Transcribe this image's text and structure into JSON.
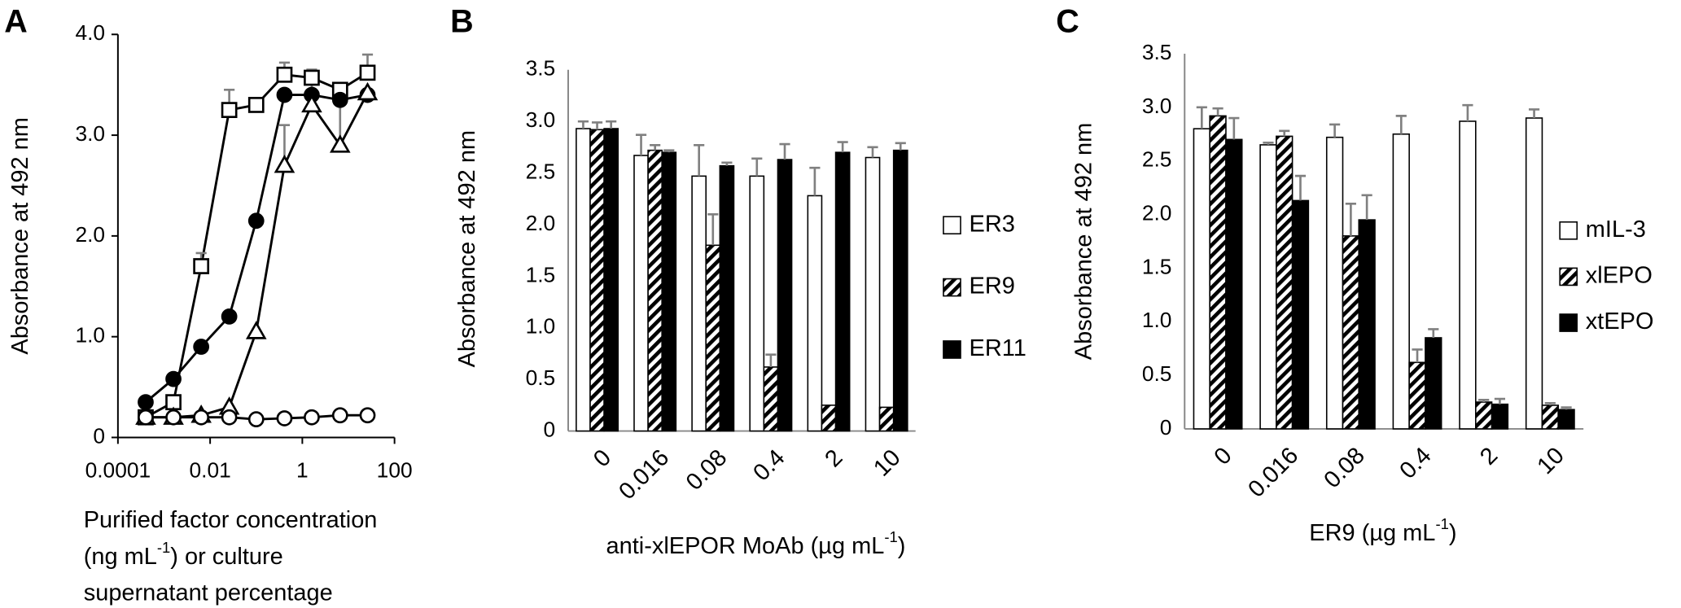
{
  "chart_data": [
    {
      "type": "line",
      "label": "A",
      "y_label": "Absorbance at 492 nm",
      "x_label": [
        [
          "Purified factor concentration"
        ],
        [
          "(ng mL",
          "-1",
          ")  or culture"
        ],
        [
          "supernatant percentage"
        ]
      ],
      "xscale": "log",
      "xlim": [
        0.0001,
        100
      ],
      "xticks": [
        0.0001,
        0.01,
        1,
        100
      ],
      "ylim": [
        0,
        4
      ],
      "yticks": [
        0,
        {
          "value": 1,
          "label": "1.0"
        },
        {
          "value": 2,
          "label": "2.0"
        },
        {
          "value": 3,
          "label": "3.0"
        },
        {
          "value": 4,
          "label": "4.0"
        }
      ],
      "x": [
        0.0004,
        0.0016,
        0.0064,
        0.026,
        0.1,
        0.41,
        1.6,
        6.6,
        26
      ],
      "series": [
        {
          "marker": "square",
          "filled": false,
          "color": "#000000",
          "values": [
            0.2,
            0.35,
            1.7,
            3.25,
            3.3,
            3.6,
            3.57,
            3.45,
            3.62
          ],
          "errors": [
            0,
            0,
            0.13,
            0.2,
            0,
            0.12,
            0,
            0,
            0.18
          ]
        },
        {
          "marker": "circle",
          "filled": true,
          "color": "#000000",
          "values": [
            0.35,
            0.58,
            0.9,
            1.2,
            2.15,
            3.4,
            3.4,
            3.35,
            3.4
          ],
          "errors": [
            0,
            0,
            0,
            0,
            0,
            0,
            0,
            0,
            0
          ]
        },
        {
          "marker": "triangle",
          "filled": false,
          "color": "#000000",
          "values": [
            0.2,
            0.2,
            0.22,
            0.3,
            1.05,
            2.7,
            3.3,
            2.9,
            3.42
          ],
          "errors": [
            0,
            0,
            0,
            0,
            0,
            0.4,
            0.35,
            0.6,
            0
          ]
        },
        {
          "marker": "circle",
          "filled": false,
          "color": "#000000",
          "values": [
            0.2,
            0.2,
            0.2,
            0.2,
            0.18,
            0.19,
            0.2,
            0.22,
            0.22
          ],
          "errors": [
            0,
            0,
            0,
            0,
            0,
            0,
            0,
            0,
            0
          ]
        }
      ]
    },
    {
      "type": "bar",
      "label": "B",
      "y_label": "Absorbance at 492 nm",
      "x_label": [
        [
          "anti-xlEPOR MoAb (µg mL",
          "-1",
          ")"
        ]
      ],
      "categories": [
        "0",
        "0.016",
        "0.08",
        "0.4",
        "2",
        "10"
      ],
      "ylim": [
        0,
        3.5
      ],
      "yticks": [
        0,
        0.5,
        {
          "value": 1,
          "label": "1.0"
        },
        1.5,
        {
          "value": 2,
          "label": "2.0"
        },
        2.5,
        {
          "value": 3,
          "label": "3.0"
        },
        3.5
      ],
      "series": [
        {
          "name": "ER3",
          "color": "#ffffff",
          "hatched": false,
          "values": [
            2.93,
            2.67,
            2.47,
            2.47,
            2.28,
            2.65
          ],
          "errors": [
            0.07,
            0.2,
            0.3,
            0.17,
            0.27,
            0.1
          ]
        },
        {
          "name": "ER9",
          "color": "#000000",
          "hatched": true,
          "values": [
            2.92,
            2.72,
            1.8,
            0.62,
            0.25,
            0.23
          ],
          "errors": [
            0.07,
            0.05,
            0.3,
            0.12,
            0,
            0
          ]
        },
        {
          "name": "ER11",
          "color": "#000000",
          "hatched": false,
          "values": [
            2.93,
            2.7,
            2.57,
            2.63,
            2.7,
            2.72
          ],
          "errors": [
            0.07,
            0.02,
            0.03,
            0.15,
            0.1,
            0.07
          ]
        }
      ]
    },
    {
      "type": "bar",
      "label": "C",
      "y_label": "Absorbance at 492 nm",
      "x_label": [
        [
          "ER9 (µg mL",
          "-1",
          ")"
        ]
      ],
      "categories": [
        "0",
        "0.016",
        "0.08",
        "0.4",
        "2",
        "10"
      ],
      "ylim": [
        0,
        3.5
      ],
      "yticks": [
        0,
        0.5,
        {
          "value": 1,
          "label": "1.0"
        },
        1.5,
        {
          "value": 2,
          "label": "2.0"
        },
        2.5,
        {
          "value": 3,
          "label": "3.0"
        },
        3.5
      ],
      "series": [
        {
          "name": "mIL-3",
          "color": "#ffffff",
          "hatched": false,
          "values": [
            2.8,
            2.65,
            2.72,
            2.75,
            2.87,
            2.9
          ],
          "errors": [
            0.2,
            0.02,
            0.12,
            0.17,
            0.15,
            0.08
          ]
        },
        {
          "name": "xlEPO",
          "color": "#000000",
          "hatched": true,
          "values": [
            2.92,
            2.73,
            1.8,
            0.62,
            0.25,
            0.22
          ],
          "errors": [
            0.07,
            0.05,
            0.3,
            0.12,
            0.02,
            0.02
          ]
        },
        {
          "name": "xtEPO",
          "color": "#000000",
          "hatched": false,
          "values": [
            2.7,
            2.13,
            1.95,
            0.85,
            0.23,
            0.18
          ],
          "errors": [
            0.2,
            0.23,
            0.23,
            0.08,
            0.05,
            0.02
          ]
        }
      ]
    }
  ]
}
